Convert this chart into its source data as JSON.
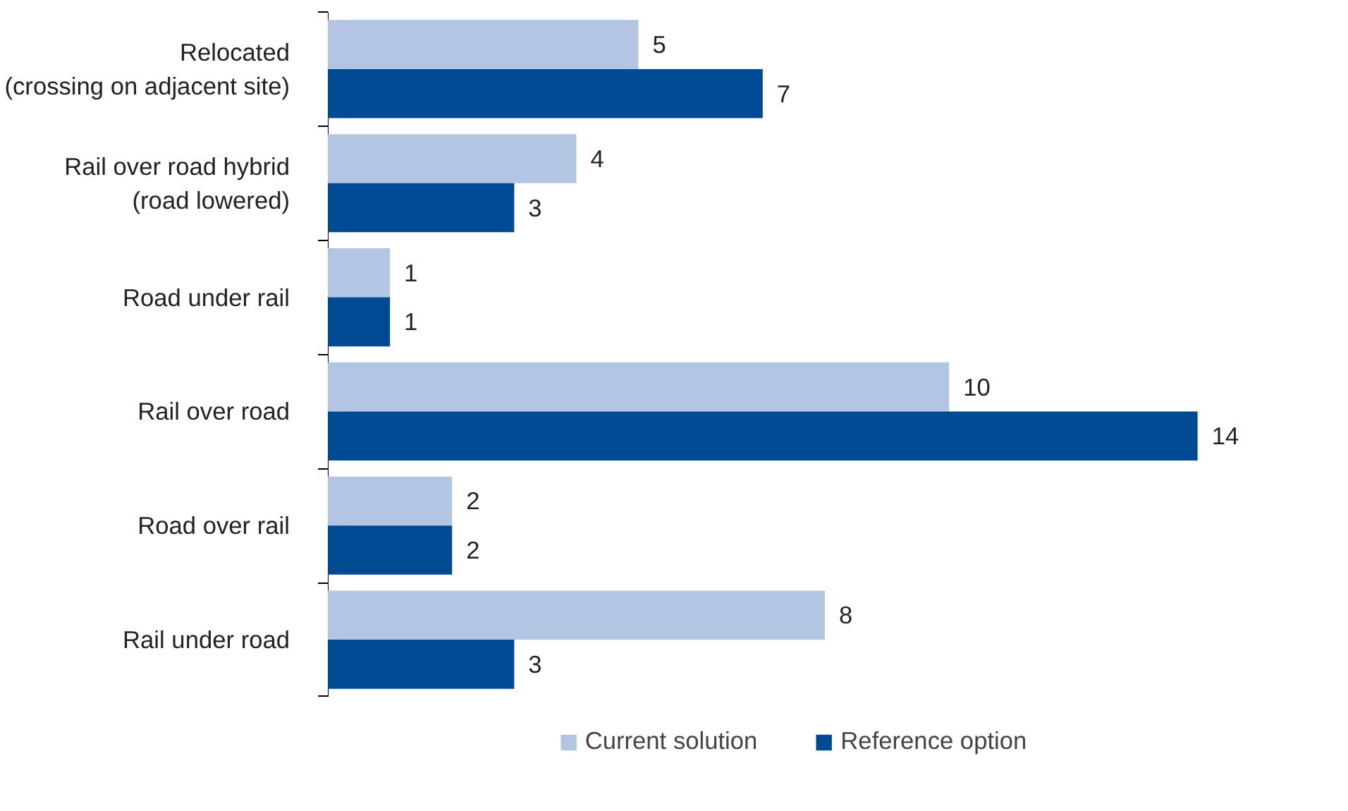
{
  "chart_data": {
    "type": "bar",
    "orientation": "horizontal",
    "categories": [
      "Relocated\n(crossing on adjacent site)",
      "Rail over road hybrid\n(road lowered)",
      "Road under rail",
      "Rail over road",
      "Road over rail",
      "Rail under road"
    ],
    "series": [
      {
        "name": "Current solution",
        "color": "#b3c5e2",
        "values": [
          5,
          4,
          1,
          10,
          2,
          8
        ]
      },
      {
        "name": "Reference option",
        "color": "#004a94",
        "values": [
          7,
          3,
          1,
          14,
          2,
          3
        ]
      }
    ],
    "data_labels": true,
    "legend": "bottom",
    "grid": false
  }
}
